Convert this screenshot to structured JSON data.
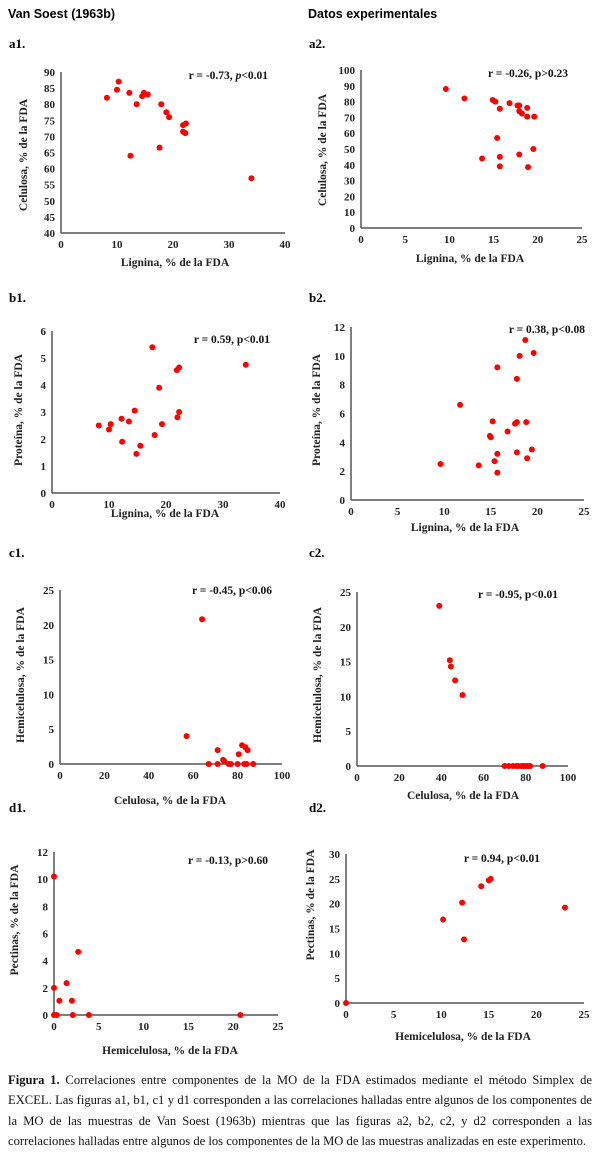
{
  "headers": {
    "left": "Van Soest (1963b)",
    "right": "Datos experimentales"
  },
  "caption": {
    "label": "Figura 1.",
    "text": " Correlaciones entre componentes de la MO de la FDA estimados mediante el método Simplex de EXCEL. Las figuras a1, b1, c1 y d1 corresponden a las correlaciones halladas entre algunos de los componentes de la MO de las muestras de Van Soest (1963b) mientras que las figuras a2, b2, c2, y d2 corresponden a las correlaciones halladas entre algunos de los componentes de la MO de las muestras analizadas en este experimento."
  },
  "colors": {
    "points": "#ff0000",
    "axis": "#555555"
  },
  "chart_data": [
    {
      "id": "a1",
      "panel_label": "a1.",
      "type": "scatter",
      "xlabel": "Lignina, % de la FDA",
      "ylabel": "Celulosa, % de la FDA",
      "annotation": [
        {
          "t": "r = -0.73, ",
          "i": false
        },
        {
          "t": "p",
          "i": true
        },
        {
          "t": "<0.01",
          "i": false
        }
      ],
      "xlim": [
        0,
        40
      ],
      "ylim": [
        40,
        90
      ],
      "xticks": [
        0,
        10,
        20,
        30,
        40
      ],
      "yticks": [
        40,
        45,
        50,
        55,
        60,
        65,
        70,
        75,
        80,
        85,
        90
      ],
      "points": [
        [
          8.2,
          82
        ],
        [
          10,
          84.5
        ],
        [
          10.3,
          87
        ],
        [
          12.2,
          83.5
        ],
        [
          12.4,
          64
        ],
        [
          13.5,
          80
        ],
        [
          14.5,
          82.5
        ],
        [
          14.8,
          83.5
        ],
        [
          15.5,
          83
        ],
        [
          17.6,
          66.5
        ],
        [
          17.9,
          80
        ],
        [
          18.8,
          77.5
        ],
        [
          19.3,
          76
        ],
        [
          21.8,
          73.5
        ],
        [
          22.3,
          74
        ],
        [
          21.8,
          71.5
        ],
        [
          22.2,
          71
        ],
        [
          34,
          57
        ]
      ]
    },
    {
      "id": "a2",
      "panel_label": "a2.",
      "type": "scatter",
      "xlabel": "Lignina, % de la FDA",
      "ylabel": "Celulosa, % de la FDA",
      "annotation": [
        {
          "t": "r = -0.26, p>0.23",
          "i": false
        }
      ],
      "xlim": [
        0,
        25
      ],
      "ylim": [
        0,
        100
      ],
      "xticks": [
        0,
        5,
        10,
        15,
        20,
        25
      ],
      "yticks": [
        0,
        10,
        20,
        30,
        40,
        50,
        60,
        70,
        80,
        90,
        100
      ],
      "points": [
        [
          9.6,
          88
        ],
        [
          11.7,
          82
        ],
        [
          14.9,
          81
        ],
        [
          15.2,
          80
        ],
        [
          15.7,
          75.5
        ],
        [
          16.8,
          79
        ],
        [
          17.7,
          77.5
        ],
        [
          17.9,
          77.5
        ],
        [
          17.9,
          74
        ],
        [
          18.2,
          72.5
        ],
        [
          18.8,
          76
        ],
        [
          18.8,
          70.5
        ],
        [
          19.6,
          70.5
        ],
        [
          15.4,
          57
        ],
        [
          13.7,
          44
        ],
        [
          15.7,
          45
        ],
        [
          15.7,
          39
        ],
        [
          17.9,
          46.5
        ],
        [
          19.5,
          50
        ],
        [
          18.9,
          38.5
        ]
      ]
    },
    {
      "id": "b1",
      "panel_label": "b1.",
      "type": "scatter",
      "xlabel": "Lignina, % de la FDA",
      "ylabel": "Proteína, % de la FDA",
      "annotation": [
        {
          "t": "r = 0.59, p<0.01",
          "i": false
        }
      ],
      "xlim": [
        0,
        40
      ],
      "ylim": [
        0,
        6
      ],
      "xticks": [
        0,
        10,
        20,
        30,
        40
      ],
      "yticks": [
        0,
        1,
        2,
        3,
        4,
        5,
        6
      ],
      "points": [
        [
          8.2,
          2.5
        ],
        [
          10,
          2.35
        ],
        [
          10.3,
          2.55
        ],
        [
          12.2,
          2.75
        ],
        [
          12.3,
          1.9
        ],
        [
          13.5,
          2.65
        ],
        [
          14.5,
          3.05
        ],
        [
          14.8,
          1.45
        ],
        [
          15.5,
          1.75
        ],
        [
          17.6,
          5.4
        ],
        [
          18,
          2.15
        ],
        [
          18.8,
          3.9
        ],
        [
          19.3,
          2.55
        ],
        [
          22,
          2.8
        ],
        [
          22.3,
          3
        ],
        [
          21.9,
          4.55
        ],
        [
          22.3,
          4.65
        ],
        [
          34,
          4.75
        ]
      ]
    },
    {
      "id": "b2",
      "panel_label": "b2.",
      "type": "scatter",
      "xlabel": "Lignina, % de la FDA",
      "ylabel": "Proteína, % de la FDA",
      "annotation": [
        {
          "t": "r = 0.38, p<0.08",
          "i": false
        }
      ],
      "xlim": [
        0,
        25
      ],
      "ylim": [
        0,
        12
      ],
      "xticks": [
        0,
        5,
        10,
        15,
        20,
        25
      ],
      "yticks": [
        0,
        2,
        4,
        6,
        8,
        10,
        12
      ],
      "points": [
        [
          9.6,
          2.5
        ],
        [
          11.7,
          6.6
        ],
        [
          13.7,
          2.4
        ],
        [
          14.9,
          4.45
        ],
        [
          15,
          4.35
        ],
        [
          15.2,
          5.45
        ],
        [
          15.4,
          2.7
        ],
        [
          15.7,
          9.2
        ],
        [
          15.7,
          3.2
        ],
        [
          15.7,
          1.9
        ],
        [
          16.8,
          4.75
        ],
        [
          17.6,
          5.3
        ],
        [
          17.8,
          5.4
        ],
        [
          17.8,
          8.4
        ],
        [
          17.8,
          3.3
        ],
        [
          18.1,
          10
        ],
        [
          18.7,
          11.1
        ],
        [
          18.8,
          5.4
        ],
        [
          18.9,
          2.9
        ],
        [
          19.4,
          3.5
        ],
        [
          19.6,
          10.2
        ]
      ]
    },
    {
      "id": "c1",
      "panel_label": "c1.",
      "type": "scatter",
      "xlabel": "Celulosa, % de la FDA",
      "ylabel": "Hemicelulosa, % de la FDA",
      "annotation": [
        {
          "t": "r = -0.45, p<0.06",
          "i": false
        }
      ],
      "xlim": [
        0,
        100
      ],
      "ylim": [
        0,
        25
      ],
      "xticks": [
        0,
        20,
        40,
        60,
        80,
        100
      ],
      "yticks": [
        0,
        5,
        10,
        15,
        20,
        25
      ],
      "points": [
        [
          57,
          4
        ],
        [
          64,
          20.8
        ],
        [
          67,
          0
        ],
        [
          71,
          0
        ],
        [
          71,
          2
        ],
        [
          73.5,
          0.6
        ],
        [
          74,
          0.4
        ],
        [
          76,
          0
        ],
        [
          77,
          0
        ],
        [
          80,
          0
        ],
        [
          80.5,
          1.4
        ],
        [
          82,
          2.7
        ],
        [
          83,
          0
        ],
        [
          83.5,
          2.4
        ],
        [
          84,
          0
        ],
        [
          84.5,
          2
        ],
        [
          87,
          0
        ]
      ]
    },
    {
      "id": "c2",
      "panel_label": "c2.",
      "type": "scatter",
      "xlabel": "Celulosa, % de la FDA",
      "ylabel": "Hemicelulosa, % de la FDA",
      "annotation": [
        {
          "t": "r = -0.95, p<0.01",
          "i": false
        }
      ],
      "xlim": [
        0,
        100
      ],
      "ylim": [
        0,
        25
      ],
      "xticks": [
        0,
        20,
        40,
        60,
        80,
        100
      ],
      "yticks": [
        0,
        5,
        10,
        15,
        20,
        25
      ],
      "points": [
        [
          39,
          23
        ],
        [
          44,
          15.2
        ],
        [
          44.5,
          14.3
        ],
        [
          46.5,
          12.3
        ],
        [
          50,
          10.2
        ],
        [
          70,
          0
        ],
        [
          72,
          0
        ],
        [
          74,
          0
        ],
        [
          75.5,
          0
        ],
        [
          76.5,
          0
        ],
        [
          78,
          0
        ],
        [
          79,
          0
        ],
        [
          80,
          0
        ],
        [
          81,
          0
        ],
        [
          82,
          0
        ],
        [
          88,
          0
        ]
      ]
    },
    {
      "id": "d1",
      "panel_label": "d1.",
      "type": "scatter",
      "xlabel": "Hemicelulosa, % de la FDA",
      "ylabel": "Pectinas, % de la FDA",
      "annotation": [
        {
          "t": "r = -0.13, p>0.60",
          "i": false
        }
      ],
      "xlim": [
        0,
        25
      ],
      "ylim": [
        0,
        12
      ],
      "xticks": [
        0,
        5,
        10,
        15,
        20,
        25
      ],
      "yticks": [
        0,
        2,
        4,
        6,
        8,
        10,
        12
      ],
      "points": [
        [
          0,
          10.2
        ],
        [
          0,
          2
        ],
        [
          0,
          0
        ],
        [
          0.3,
          0
        ],
        [
          0.6,
          1.05
        ],
        [
          1.4,
          2.35
        ],
        [
          2,
          1.05
        ],
        [
          2.1,
          0
        ],
        [
          2.7,
          4.65
        ],
        [
          3.9,
          0
        ],
        [
          20.8,
          0
        ]
      ]
    },
    {
      "id": "d2",
      "panel_label": "d2.",
      "type": "scatter",
      "xlabel": "Hemicelulosa, % de la FDA",
      "ylabel": "Pectinas, % de la FDA",
      "annotation": [
        {
          "t": "r = 0.94, p<0.01",
          "i": false
        }
      ],
      "xlim": [
        0,
        25
      ],
      "ylim": [
        0,
        30
      ],
      "xticks": [
        0,
        5,
        10,
        15,
        20,
        25
      ],
      "yticks": [
        0,
        5,
        10,
        15,
        20,
        25,
        30
      ],
      "points": [
        [
          0,
          0
        ],
        [
          10.2,
          16.8
        ],
        [
          12.2,
          20.2
        ],
        [
          12.4,
          12.8
        ],
        [
          14.2,
          23.5
        ],
        [
          15,
          24.7
        ],
        [
          15.2,
          25
        ],
        [
          23,
          19.2
        ]
      ]
    }
  ]
}
